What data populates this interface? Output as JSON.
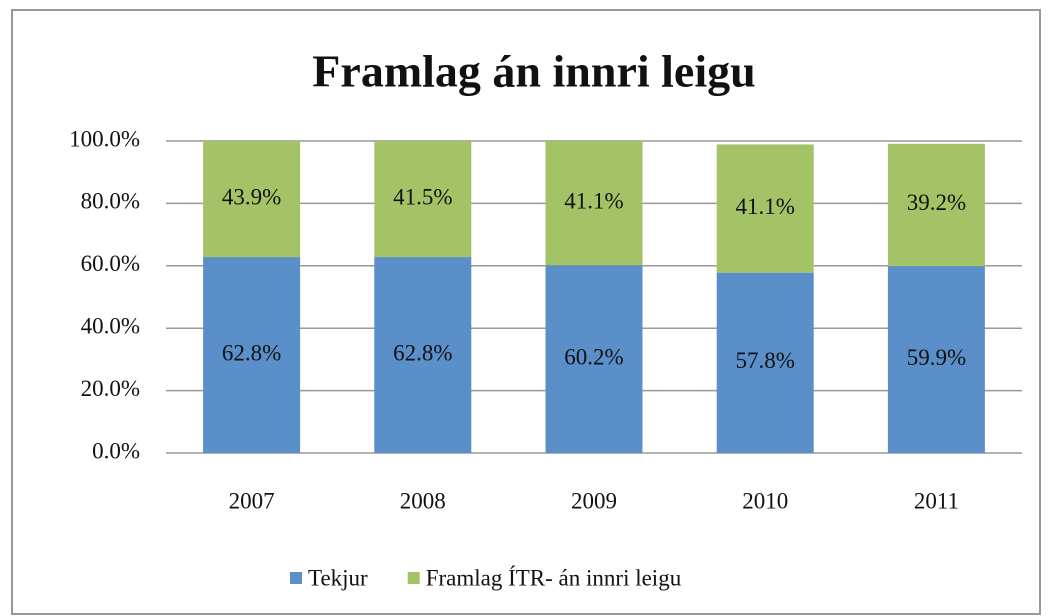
{
  "chart_data": {
    "type": "stacked_bar",
    "title": "Framlag án innri leigu",
    "categories": [
      "2007",
      "2008",
      "2009",
      "2010",
      "2011"
    ],
    "series": [
      {
        "name": "Tekjur",
        "color": "#5b8fc9",
        "values": [
          62.8,
          62.8,
          60.2,
          57.8,
          59.9
        ],
        "value_labels": [
          "62.8%",
          "62.8%",
          "60.2%",
          "57.8%",
          "59.9%"
        ]
      },
      {
        "name": "Framlag ÍTR- án innri leigu",
        "color": "#a4c366",
        "values": [
          43.9,
          41.5,
          41.1,
          41.1,
          39.2
        ],
        "value_labels": [
          "43.9%",
          "41.5%",
          "41.1%",
          "41.1%",
          "39.2%"
        ]
      }
    ],
    "ylim": [
      0,
      100
    ],
    "yticks": [
      {
        "value": 0,
        "label": "0.0%"
      },
      {
        "value": 20,
        "label": "20.0%"
      },
      {
        "value": 40,
        "label": "40.0%"
      },
      {
        "value": 60,
        "label": "60.0%"
      },
      {
        "value": 80,
        "label": "80.0%"
      },
      {
        "value": 100,
        "label": "100.0%"
      }
    ],
    "grid": true,
    "legend": "bottom"
  }
}
